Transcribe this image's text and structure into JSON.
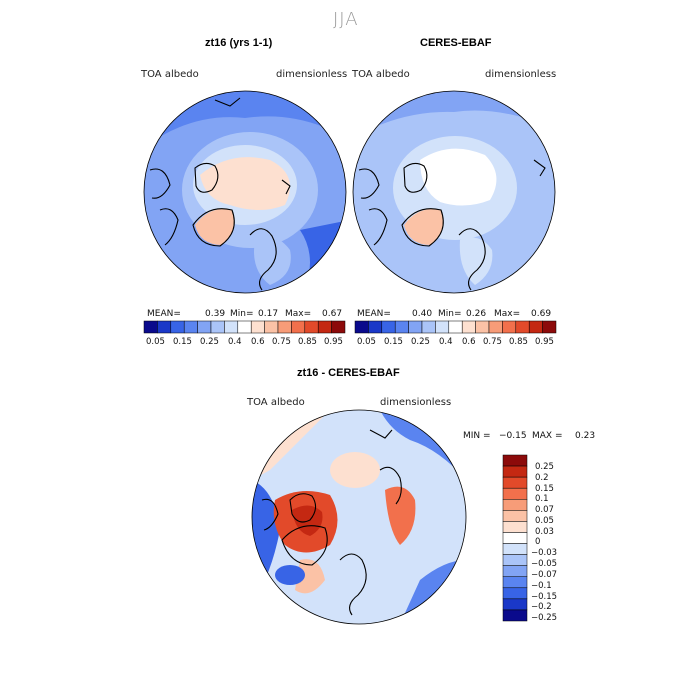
{
  "suptitle": "JJA",
  "colors": {
    "scale": [
      "#0a0a8c",
      "#1a38c8",
      "#3864e6",
      "#5a84f0",
      "#82a4f4",
      "#aac4f8",
      "#d2e2fa",
      "#ffffff",
      "#fde0d0",
      "#fbc2a6",
      "#f79c78",
      "#f2704c",
      "#e24a2a",
      "#c42812",
      "#8c0a0a"
    ],
    "land_line": "#000000"
  },
  "chart_data": [
    {
      "type": "polar-map",
      "title": "zt16 (yrs 1-1)",
      "variable": "TOA albedo",
      "units": "dimensionless",
      "stats": {
        "mean_label": "MEAN=",
        "mean": "0.39",
        "min_label": "Min=",
        "min": "0.17",
        "max_label": "Max=",
        "max": "0.67"
      },
      "colorbar_ticks": [
        "0.05",
        "0.15",
        "0.25",
        "0.4",
        "0.6",
        "0.75",
        "0.85",
        "0.95"
      ]
    },
    {
      "type": "polar-map",
      "title": "CERES-EBAF",
      "variable": "TOA albedo",
      "units": "dimensionless",
      "stats": {
        "mean_label": "MEAN=",
        "mean": "0.40",
        "min_label": "Min=",
        "min": "0.26",
        "max_label": "Max=",
        "max": "0.69"
      },
      "colorbar_ticks": [
        "0.05",
        "0.15",
        "0.25",
        "0.4",
        "0.6",
        "0.75",
        "0.85",
        "0.95"
      ]
    },
    {
      "type": "polar-map",
      "title": "zt16 - CERES-EBAF",
      "variable": "TOA albedo",
      "units": "dimensionless",
      "stats": {
        "min_label": "MIN =",
        "min": "−0.15",
        "max_label": "MAX =",
        "max": "0.23"
      },
      "colorbar_ticks": [
        "0.25",
        "0.2",
        "0.15",
        "0.1",
        "0.07",
        "0.05",
        "0.03",
        "0",
        "−0.03",
        "−0.05",
        "−0.07",
        "−0.1",
        "−0.15",
        "−0.2",
        "−0.25"
      ]
    }
  ]
}
